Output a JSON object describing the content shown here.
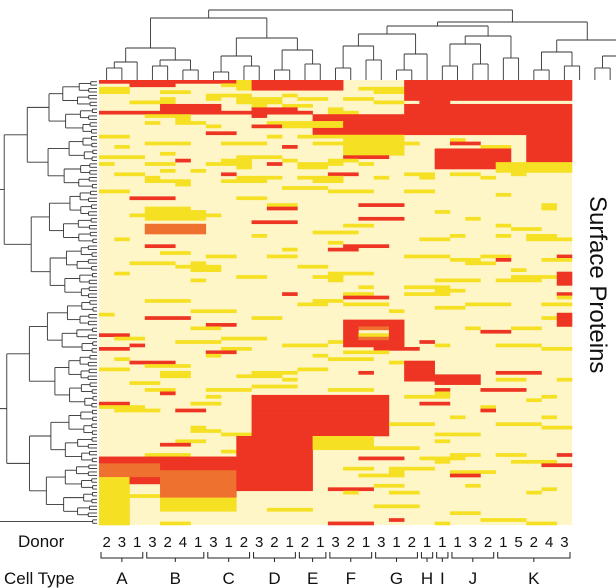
{
  "chart_data": {
    "type": "heatmap",
    "title": "",
    "row_axis_label": "Surface Proteins",
    "donor_row_label": "Donor",
    "cell_type_row_label": "Cell Type",
    "columns": [
      {
        "cell_type": "A",
        "donors": [
          "2",
          "3",
          "1"
        ]
      },
      {
        "cell_type": "B",
        "donors": [
          "3",
          "2",
          "4",
          "1"
        ]
      },
      {
        "cell_type": "C",
        "donors": [
          "3",
          "1",
          "2"
        ]
      },
      {
        "cell_type": "D",
        "donors": [
          "3",
          "2",
          "1"
        ]
      },
      {
        "cell_type": "E",
        "donors": [
          "2",
          "1"
        ]
      },
      {
        "cell_type": "F",
        "donors": [
          "3",
          "2",
          "1"
        ]
      },
      {
        "cell_type": "G",
        "donors": [
          "3",
          "1",
          "2"
        ]
      },
      {
        "cell_type": "H",
        "donors": [
          "1"
        ]
      },
      {
        "cell_type": "I",
        "donors": [
          "1"
        ]
      },
      {
        "cell_type": "J",
        "donors": [
          "1",
          "3",
          "2"
        ]
      },
      {
        "cell_type": "K",
        "donors": [
          "1",
          "5",
          "2",
          "4",
          "3"
        ]
      }
    ],
    "color_scale": {
      "levels": [
        0,
        1,
        2,
        3
      ],
      "colors": [
        "#FEF6C7",
        "#F6E023",
        "#EE3524",
        "#EF7130"
      ]
    },
    "blocks": [
      {
        "cols": [
          0,
          9
        ],
        "rows": [
          0,
          1
        ],
        "level": 2
      },
      {
        "cols": [
          0,
          2
        ],
        "rows": [
          2,
          4
        ],
        "level": 1
      },
      {
        "cols": [
          10,
          16
        ],
        "rows": [
          0,
          3
        ],
        "level": 2
      },
      {
        "cols": [
          4,
          8
        ],
        "rows": [
          7,
          10
        ],
        "level": 2
      },
      {
        "cols": [
          0,
          14
        ],
        "rows": [
          9,
          10
        ],
        "level": 2
      },
      {
        "cols": [
          20,
          36
        ],
        "rows": [
          0,
          6
        ],
        "level": 2
      },
      {
        "cols": [
          20,
          36
        ],
        "rows": [
          7,
          16
        ],
        "level": 2
      },
      {
        "cols": [
          28,
          36
        ],
        "rows": [
          16,
          24
        ],
        "level": 2
      },
      {
        "cols": [
          22,
          27
        ],
        "rows": [
          20,
          26
        ],
        "level": 2
      },
      {
        "cols": [
          26,
          36
        ],
        "rows": [
          24,
          27
        ],
        "level": 1
      },
      {
        "cols": [
          14,
          20
        ],
        "rows": [
          10,
          16
        ],
        "level": 2
      },
      {
        "cols": [
          16,
          20
        ],
        "rows": [
          16,
          22
        ],
        "level": 1
      },
      {
        "cols": [
          12,
          16
        ],
        "rows": [
          12,
          14
        ],
        "level": 1
      },
      {
        "cols": [
          3,
          7
        ],
        "rows": [
          42,
          45
        ],
        "level": 3
      },
      {
        "cols": [
          3,
          7
        ],
        "rows": [
          38,
          41
        ],
        "level": 1
      },
      {
        "cols": [
          16,
          20
        ],
        "rows": [
          70,
          78
        ],
        "level": 2
      },
      {
        "cols": [
          17,
          19
        ],
        "rows": [
          72,
          76
        ],
        "level": 3
      },
      {
        "cols": [
          17,
          19
        ],
        "rows": [
          73,
          75
        ],
        "level": 0
      },
      {
        "cols": [
          20,
          22
        ],
        "rows": [
          82,
          88
        ],
        "level": 2
      },
      {
        "cols": [
          22,
          25
        ],
        "rows": [
          86,
          89
        ],
        "level": 2
      },
      {
        "cols": [
          10,
          19
        ],
        "rows": [
          92,
          104
        ],
        "level": 2
      },
      {
        "cols": [
          13,
          18
        ],
        "rows": [
          104,
          108
        ],
        "level": 1
      },
      {
        "cols": [
          9,
          14
        ],
        "rows": [
          104,
          108
        ],
        "level": 2
      },
      {
        "cols": [
          0,
          9
        ],
        "rows": [
          110,
          118
        ],
        "level": 2
      },
      {
        "cols": [
          9,
          14
        ],
        "rows": [
          108,
          120
        ],
        "level": 2
      },
      {
        "cols": [
          4,
          9
        ],
        "rows": [
          114,
          122
        ],
        "level": 3
      },
      {
        "cols": [
          0,
          4
        ],
        "rows": [
          112,
          116
        ],
        "level": 3
      },
      {
        "cols": [
          0,
          2
        ],
        "rows": [
          116,
          130
        ],
        "level": 1
      },
      {
        "cols": [
          4,
          9
        ],
        "rows": [
          122,
          126
        ],
        "level": 1
      },
      {
        "cols": [
          34,
          36
        ],
        "rows": [
          40,
          52
        ],
        "level": 1
      },
      {
        "cols": [
          31,
          36
        ],
        "rows": [
          50,
          54
        ],
        "level": 1
      },
      {
        "cols": [
          30,
          35
        ],
        "rows": [
          56,
          60
        ],
        "level": 2
      },
      {
        "cols": [
          33,
          36
        ],
        "rows": [
          64,
          76
        ],
        "level": 1
      },
      {
        "cols": [
          30,
          33
        ],
        "rows": [
          68,
          72
        ],
        "level": 2
      }
    ],
    "cell_noise_levels": [
      1,
      2
    ]
  }
}
